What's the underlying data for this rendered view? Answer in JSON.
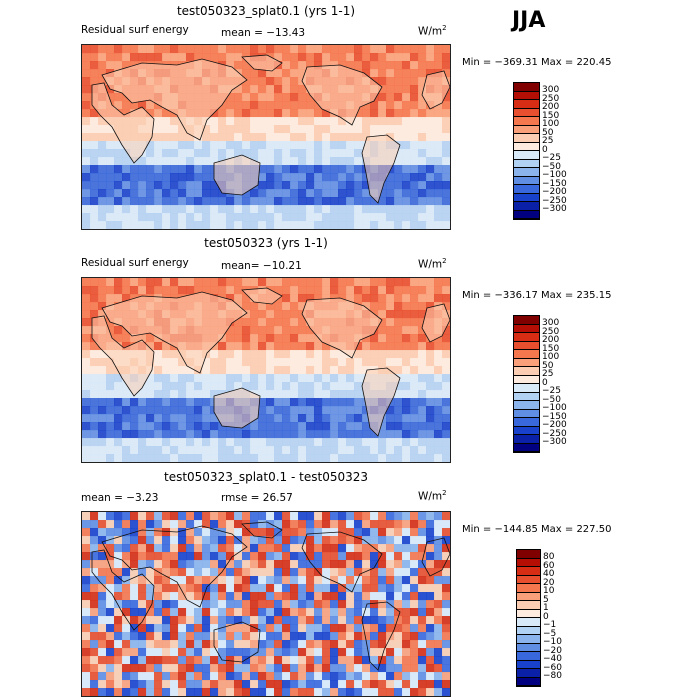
{
  "season": "JJA",
  "panels": [
    {
      "title": "test050323_splat0.1 (yrs 1-1)",
      "variable": "Residual surf energy",
      "mean_label": "mean = −13.43",
      "rmse_label": "",
      "units": "W/m",
      "units_sup": "2",
      "minmax": "Min = −369.31 Max = 220.45",
      "levels": [
        "300",
        "250",
        "200",
        "150",
        "100",
        "50",
        "25",
        "0",
        "−25",
        "−50",
        "−100",
        "−150",
        "−200",
        "−250",
        "−300"
      ],
      "colors": [
        "#800000",
        "#b40e05",
        "#d62d14",
        "#e84f2e",
        "#f5774e",
        "#f9a07a",
        "#fbcdb2",
        "#fdebdf",
        "#d8e9f8",
        "#b2d2f3",
        "#8bb4ec",
        "#5f8ee3",
        "#3868dc",
        "#1842cc",
        "#0a20a6",
        "#000080"
      ],
      "pattern": "mean"
    },
    {
      "title": "test050323 (yrs 1-1)",
      "variable": "Residual surf energy",
      "mean_label": "mean= −10.21",
      "rmse_label": "",
      "units": "W/m",
      "units_sup": "2",
      "minmax": "Min = −336.17 Max = 235.15",
      "levels": [
        "300",
        "250",
        "200",
        "150",
        "100",
        "50",
        "25",
        "0",
        "−25",
        "−50",
        "−100",
        "−150",
        "−200",
        "−250",
        "−300"
      ],
      "colors": [
        "#800000",
        "#b40e05",
        "#d62d14",
        "#e84f2e",
        "#f5774e",
        "#f9a07a",
        "#fbcdb2",
        "#fdebdf",
        "#d8e9f8",
        "#b2d2f3",
        "#8bb4ec",
        "#5f8ee3",
        "#3868dc",
        "#1842cc",
        "#0a20a6",
        "#000080"
      ],
      "pattern": "mean"
    },
    {
      "title": "test050323_splat0.1 - test050323",
      "variable": "",
      "mean_label": "mean =   −3.23",
      "rmse_label": "rmse =   26.57",
      "units": "W/m",
      "units_sup": "2",
      "minmax": "Min = −144.85 Max = 227.50",
      "levels": [
        "80",
        "60",
        "40",
        "20",
        "10",
        "5",
        "1",
        "0",
        "−1",
        "−5",
        "−10",
        "−20",
        "−40",
        "−60",
        "−80"
      ],
      "colors": [
        "#800000",
        "#b40e05",
        "#d62d14",
        "#e84f2e",
        "#f5774e",
        "#f9a07a",
        "#fbcdb2",
        "#fdebdf",
        "#d8e9f8",
        "#b2d2f3",
        "#8bb4ec",
        "#5f8ee3",
        "#3868dc",
        "#1842cc",
        "#0a20a6",
        "#000080"
      ],
      "pattern": "diff"
    }
  ]
}
